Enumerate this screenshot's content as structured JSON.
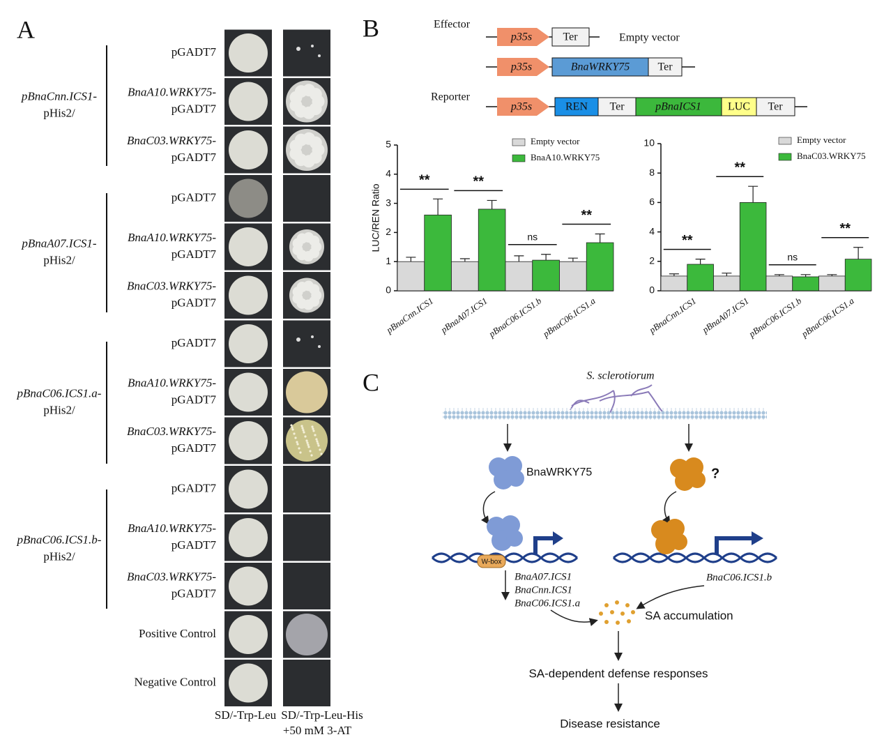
{
  "panel_a": {
    "label": "A",
    "groups": [
      {
        "lines": [
          "pBnaCnn.ICS1-",
          "pHis2/"
        ]
      },
      {
        "lines": [
          "pBnaA07.ICS1-",
          "pHis2/"
        ]
      },
      {
        "lines": [
          "pBnaC06.ICS1.a-",
          "pHis2/"
        ]
      },
      {
        "lines": [
          "pBnaC06.ICS1.b-",
          "pHis2/"
        ]
      }
    ],
    "rows": [
      {
        "lines": [
          "pGADT7"
        ]
      },
      {
        "lines": [
          "BnaA10.WRKY75-",
          "pGADT7"
        ]
      },
      {
        "lines": [
          "BnaC03.WRKY75-",
          "pGADT7"
        ]
      },
      {
        "lines": [
          "pGADT7"
        ]
      },
      {
        "lines": [
          "BnaA10.WRKY75-",
          "pGADT7"
        ]
      },
      {
        "lines": [
          "BnaC03.WRKY75-",
          "pGADT7"
        ]
      },
      {
        "lines": [
          "pGADT7"
        ]
      },
      {
        "lines": [
          "BnaA10.WRKY75-",
          "pGADT7"
        ]
      },
      {
        "lines": [
          "BnaC03.WRKY75-",
          "pGADT7"
        ]
      },
      {
        "lines": [
          "pGADT7"
        ]
      },
      {
        "lines": [
          "BnaA10.WRKY75-",
          "pGADT7"
        ]
      },
      {
        "lines": [
          "BnaC03.WRKY75-",
          "pGADT7"
        ]
      },
      {
        "lines": [
          "Positive Control"
        ]
      },
      {
        "lines": [
          "Negative Control"
        ]
      }
    ],
    "columns": [
      {
        "lines": [
          "SD/-Trp-Leu"
        ]
      },
      {
        "lines": [
          "SD/-Trp-Leu-His",
          "+50 mM 3-AT"
        ]
      }
    ]
  },
  "panel_b": {
    "label": "B",
    "effector": "Effector",
    "reporter": "Reporter",
    "promoter": "p35s",
    "terminator": "Ter",
    "empty_vector": "Empty vector",
    "effector_gene": "BnaWRKY75",
    "ren": "REN",
    "reporter_promoter": "pBnaICS1",
    "luc": "LUC"
  },
  "chart_data": [
    {
      "type": "bar",
      "ylabel": "LUC/REN Ratio",
      "categories": [
        "pBnaCnn.ICS1",
        "pBnaA07.ICS1",
        "pBnaC06.ICS1.b",
        "pBnaC06.ICS1.a"
      ],
      "series": [
        {
          "name": "Empty vector",
          "color": "#d9d9d9",
          "values": [
            1.0,
            1.0,
            1.0,
            1.0
          ],
          "errors": [
            0.15,
            0.1,
            0.2,
            0.12
          ]
        },
        {
          "name": "BnaA10.WRKY75",
          "color": "#3cb93c",
          "values": [
            2.6,
            2.8,
            1.05,
            1.65
          ],
          "errors": [
            0.55,
            0.3,
            0.2,
            0.3
          ]
        }
      ],
      "annotations": [
        "**",
        "**",
        "ns",
        "**"
      ],
      "ylim": [
        0,
        5
      ],
      "yticks": [
        0,
        1,
        2,
        3,
        4,
        5
      ],
      "legend": "upper right"
    },
    {
      "type": "bar",
      "categories": [
        "pBnaCnn.ICS1",
        "pBnaA07.ICS1",
        "pBnaC06.ICS1.b",
        "pBnaC06.ICS1.a"
      ],
      "series": [
        {
          "name": "Empty vector",
          "color": "#d9d9d9",
          "values": [
            1.0,
            1.0,
            1.0,
            1.0
          ],
          "errors": [
            0.15,
            0.2,
            0.1,
            0.1
          ]
        },
        {
          "name": "BnaC03.WRKY75",
          "color": "#3cb93c",
          "values": [
            1.8,
            6.0,
            0.95,
            2.15
          ],
          "errors": [
            0.35,
            1.1,
            0.15,
            0.8
          ]
        }
      ],
      "annotations": [
        "**",
        "**",
        "ns",
        "**"
      ],
      "ylim": [
        0,
        10
      ],
      "yticks": [
        0,
        2,
        4,
        6,
        8,
        10
      ],
      "legend": "upper right"
    }
  ],
  "panel_c": {
    "label": "C",
    "pathogen": "S. sclerotiorum",
    "factor": "BnaWRKY75",
    "unknown": "?",
    "motif": "W-box",
    "targets": [
      "BnaA07.ICS1",
      "BnaCnn.ICS1",
      "BnaC06.ICS1.a"
    ],
    "other_target": "BnaC06.ICS1.b",
    "accumulation": "SA accumulation",
    "responses": "SA-dependent defense responses",
    "outcome": "Disease resistance"
  }
}
